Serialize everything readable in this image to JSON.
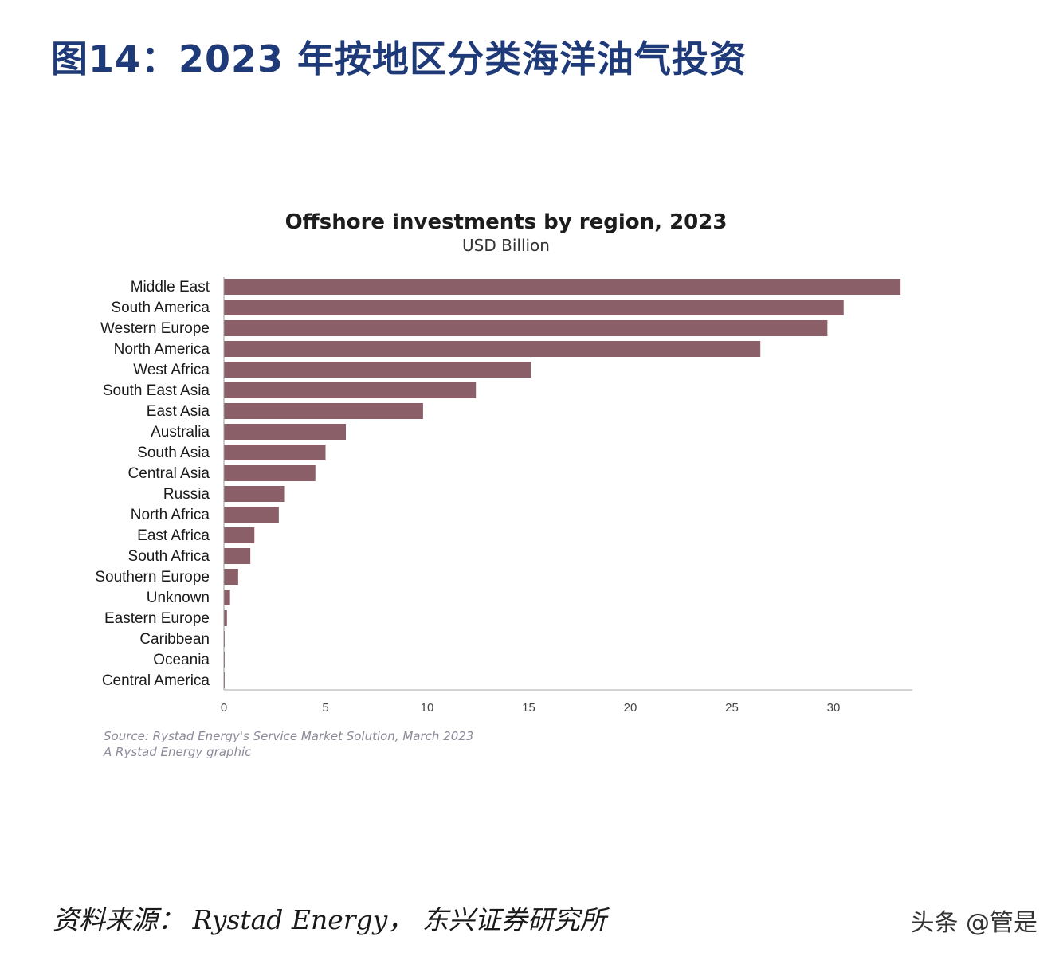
{
  "figure_title": "图14：2023 年按地区分类海洋油气投资",
  "chart_data": {
    "type": "bar",
    "orientation": "horizontal",
    "title": "Offshore investments by region, 2023",
    "subtitle": "USD Billion",
    "categories": [
      "Middle East",
      "South America",
      "Western Europe",
      "North America",
      "West Africa",
      "South East Asia",
      "East Asia",
      "Australia",
      "South Asia",
      "Central Asia",
      "Russia",
      "North Africa",
      "East Africa",
      "South Africa",
      "Southern Europe",
      "Unknown",
      "Eastern Europe",
      "Caribbean",
      "Oceania",
      "Central America"
    ],
    "values": [
      33.3,
      30.5,
      29.7,
      26.4,
      15.1,
      12.4,
      9.8,
      6.0,
      5.0,
      4.5,
      3.0,
      2.7,
      1.5,
      1.3,
      0.7,
      0.3,
      0.15,
      0.03,
      0.02,
      0.02
    ],
    "xlim": [
      0,
      34
    ],
    "xticks": [
      0,
      5,
      10,
      15,
      20,
      25,
      30
    ],
    "bar_color": "#8a5f67",
    "grid": false
  },
  "source_lines": [
    "Source: Rystad Energy's Service Market Solution, March 2023",
    "A Rystad Energy graphic"
  ],
  "footer": {
    "source": "资料来源：  Rystad Energy，  东兴证券研究所",
    "watermark": "头条 @管是"
  }
}
